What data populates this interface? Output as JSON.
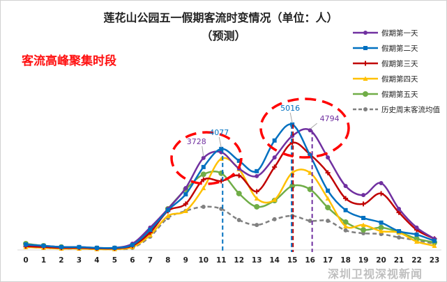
{
  "chart_data": {
    "type": "line",
    "title": "莲花山公园五一假期客流时变情况（单位：人）",
    "subtitle": "（预测）",
    "annotation": "客流高峰聚集时段",
    "xlabel": "",
    "ylabel": "",
    "ylim": [
      0,
      5600
    ],
    "grid": false,
    "legend_position": "right",
    "categories": [
      "0",
      "1",
      "2",
      "3",
      "4",
      "5",
      "6",
      "7",
      "8",
      "9",
      "10",
      "11",
      "12",
      "13",
      "14",
      "15",
      "16",
      "17",
      "18",
      "19",
      "20",
      "21",
      "22",
      "23"
    ],
    "series": [
      {
        "name": "假期第一天",
        "color": "#7030a0",
        "marker": "circle",
        "dashed": false,
        "values": [
          380,
          350,
          300,
          300,
          270,
          270,
          430,
          1050,
          1770,
          2570,
          3728,
          3950,
          3320,
          3030,
          3750,
          4580,
          4794,
          3750,
          2650,
          2300,
          2760,
          1770,
          1050,
          620
        ]
      },
      {
        "name": "假期第二天",
        "color": "#0070c0",
        "marker": "square",
        "dashed": false,
        "values": [
          400,
          350,
          300,
          300,
          270,
          270,
          380,
          960,
          1720,
          2330,
          3380,
          4077,
          3620,
          3220,
          4400,
          5016,
          3830,
          2470,
          1720,
          1420,
          1240,
          910,
          780,
          540
        ]
      },
      {
        "name": "假期第三天",
        "color": "#c00000",
        "marker": "plus",
        "dashed": false,
        "values": [
          330,
          300,
          270,
          270,
          250,
          250,
          350,
          860,
          1690,
          1960,
          2890,
          2840,
          3050,
          2440,
          3380,
          4310,
          3860,
          3160,
          2170,
          1960,
          2360,
          1630,
          960,
          620
        ]
      },
      {
        "name": "假期第四天",
        "color": "#ffc000",
        "marker": "triangle",
        "dashed": false,
        "values": [
          300,
          270,
          240,
          240,
          220,
          220,
          300,
          760,
          1500,
          1690,
          2570,
          3700,
          3300,
          2170,
          2120,
          3160,
          3160,
          2170,
          1100,
          1150,
          910,
          860,
          510,
          350
        ]
      },
      {
        "name": "假期第五天",
        "color": "#70ad47",
        "marker": "circle-large",
        "dashed": false,
        "values": [
          430,
          350,
          300,
          270,
          250,
          250,
          320,
          900,
          1770,
          2520,
          3100,
          3140,
          2360,
          1850,
          2090,
          2650,
          2520,
          1820,
          1260,
          960,
          1050,
          880,
          620,
          480
        ]
      },
      {
        "name": "历史周末客流均值",
        "color": "#808080",
        "marker": "circle",
        "dashed": true,
        "values": [
          300,
          270,
          240,
          240,
          220,
          220,
          270,
          700,
          1420,
          1690,
          1850,
          1770,
          1340,
          1150,
          1370,
          1500,
          1310,
          1310,
          940,
          830,
          800,
          670,
          560,
          430
        ]
      }
    ],
    "data_labels": [
      {
        "series": "假期第一天",
        "x": "10",
        "text": "3728"
      },
      {
        "series": "假期第二天",
        "x": "11",
        "text": "4077"
      },
      {
        "series": "假期第二天",
        "x": "15",
        "text": "5016"
      },
      {
        "series": "假期第一天",
        "x": "16",
        "text": "4794"
      }
    ],
    "reference_lines": [
      {
        "x": "11",
        "color": "#0070c0"
      },
      {
        "x": "15",
        "color": "#c00000"
      },
      {
        "x": "15",
        "color": "#0070c0"
      },
      {
        "x": "16",
        "color": "#7030a0"
      }
    ],
    "highlight_color": "#ff0000"
  },
  "watermark": "深圳卫视深视新闻"
}
